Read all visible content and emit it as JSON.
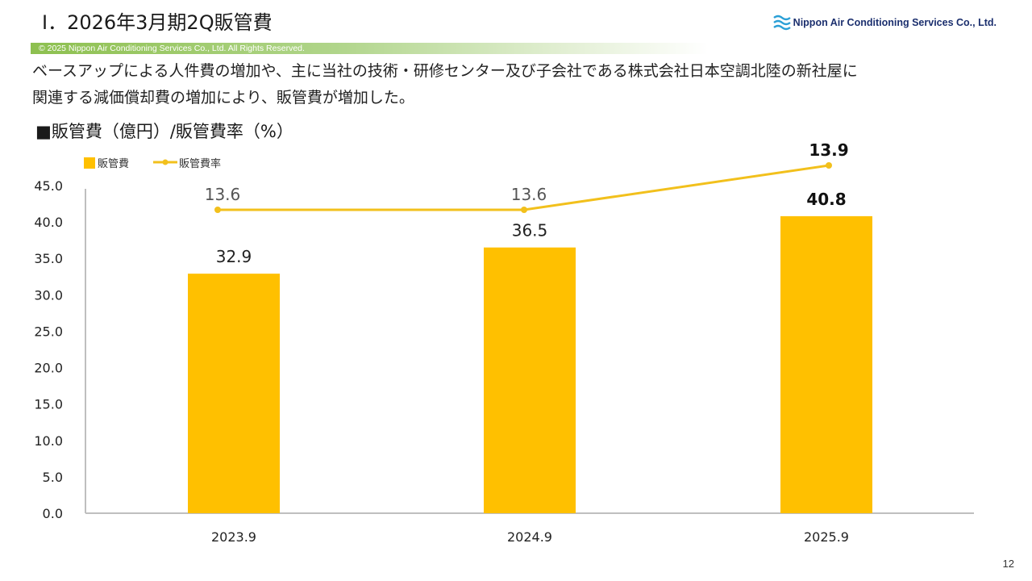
{
  "header": {
    "title": "Ⅰ．2026年3月期2Q販管費",
    "logo_text": "Nippon Air Conditioning Services Co., Ltd.",
    "copyright": "© 2025 Nippon Air Conditioning Services Co., Ltd. All Rights Reserved."
  },
  "body": {
    "description_line1": "ベースアップによる人件費の増加や、主に当社の技術・研修センター及び子会社である株式会社日本空調北陸の新社屋に",
    "description_line2": "関連する減価償却費の増加により、販管費が増加した。",
    "section_heading": "■販管費（億円）/販管費率（%）"
  },
  "page_number": "12",
  "colors": {
    "bar": "#ffc000",
    "line": "#f2c01c",
    "axis": "#bfbfbf",
    "brand_green": "#8dc04f",
    "logo_blue": "#2a9fd6"
  },
  "chart_data": {
    "type": "bar",
    "categories": [
      "2023.9",
      "2024.9",
      "2025.9"
    ],
    "series": [
      {
        "name": "販管費",
        "type": "bar",
        "values": [
          32.9,
          36.5,
          40.8
        ],
        "labels": [
          "32.9",
          "36.5",
          "40.8"
        ]
      },
      {
        "name": "販管費率",
        "type": "line",
        "values": [
          13.6,
          13.6,
          13.9
        ],
        "labels": [
          "13.6",
          "13.6",
          "13.9"
        ]
      }
    ],
    "ylim": [
      0,
      45
    ],
    "yticks": [
      "0.0",
      "5.0",
      "10.0",
      "15.0",
      "20.0",
      "25.0",
      "30.0",
      "35.0",
      "40.0",
      "45.0"
    ],
    "legend_position": "top-left",
    "grid": false
  }
}
